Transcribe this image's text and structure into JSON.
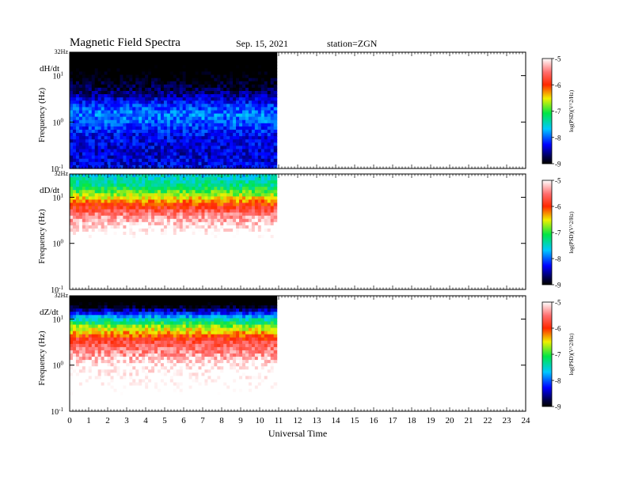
{
  "header": {
    "title": "Magnetic  Field  Spectra",
    "date": "Sep. 15, 2021",
    "station": "station=ZGN"
  },
  "chart_data": {
    "type": "heatmap",
    "xlabel": "Universal Time",
    "x_ticks": [
      "0",
      "1",
      "2",
      "3",
      "4",
      "5",
      "6",
      "7",
      "8",
      "9",
      "10",
      "11",
      "12",
      "13",
      "14",
      "15",
      "16",
      "17",
      "18",
      "19",
      "20",
      "21",
      "22",
      "23",
      "24"
    ],
    "xlim": [
      0,
      24
    ],
    "data_end_hour": 10.9,
    "panels": [
      {
        "name": "dH/dt",
        "ylabel": "Frequency  (Hz)",
        "top_label": "32Hz",
        "y_ticks": [
          {
            "base": "10",
            "exp": "1"
          },
          {
            "base": "10",
            "exp": "0"
          },
          {
            "base": "10",
            "exp": "-1"
          }
        ],
        "colorbar": {
          "label": "log(PSD)(V^2/Hz)",
          "ticks": [
            "-5",
            "-6",
            "-7",
            "-8",
            "-9"
          ],
          "range": [
            -9,
            -5
          ]
        },
        "profile": [
          {
            "f": 0.1,
            "v": -8.3
          },
          {
            "f": 0.2,
            "v": -8.4
          },
          {
            "f": 0.5,
            "v": -8.3
          },
          {
            "f": 1.0,
            "v": -8.0
          },
          {
            "f": 1.5,
            "v": -7.9
          },
          {
            "f": 2.2,
            "v": -8.1
          },
          {
            "f": 4.0,
            "v": -8.6
          },
          {
            "f": 8.0,
            "v": -9.0
          },
          {
            "f": 32.0,
            "v": -9.5
          }
        ]
      },
      {
        "name": "dD/dt",
        "ylabel": "Frequency  (Hz)",
        "top_label": "32Hz",
        "y_ticks": [
          {
            "base": "10",
            "exp": "1"
          },
          {
            "base": "10",
            "exp": "0"
          },
          {
            "base": "10",
            "exp": "-1"
          }
        ],
        "colorbar": {
          "label": "log(PSD)(V^2/Hz)",
          "ticks": [
            "-5",
            "-6",
            "-7",
            "-8",
            "-9"
          ],
          "range": [
            -9,
            -5
          ]
        },
        "profile": [
          {
            "f": 0.1,
            "v": -4.4
          },
          {
            "f": 1.0,
            "v": -4.6
          },
          {
            "f": 4.0,
            "v": -5.4
          },
          {
            "f": 8.0,
            "v": -6.2
          },
          {
            "f": 12.0,
            "v": -6.8
          },
          {
            "f": 18.0,
            "v": -7.3
          },
          {
            "f": 32.0,
            "v": -7.6
          }
        ]
      },
      {
        "name": "dZ/dt",
        "ylabel": "Frequency  (Hz)",
        "top_label": "32Hz",
        "y_ticks": [
          {
            "base": "10",
            "exp": "1"
          },
          {
            "base": "10",
            "exp": "0"
          },
          {
            "base": "10",
            "exp": "-1"
          }
        ],
        "colorbar": {
          "label": "log(PSD)(V^2/Hz)",
          "ticks": [
            "-5",
            "-6",
            "-7",
            "-8",
            "-9"
          ],
          "range": [
            -9,
            -5
          ]
        },
        "profile": [
          {
            "f": 0.1,
            "v": -4.6
          },
          {
            "f": 1.0,
            "v": -5.0
          },
          {
            "f": 3.5,
            "v": -5.8
          },
          {
            "f": 7.0,
            "v": -6.8
          },
          {
            "f": 10.0,
            "v": -7.5
          },
          {
            "f": 14.0,
            "v": -8.3
          },
          {
            "f": 20.0,
            "v": -9.1
          },
          {
            "f": 32.0,
            "v": -9.5
          }
        ]
      }
    ]
  }
}
